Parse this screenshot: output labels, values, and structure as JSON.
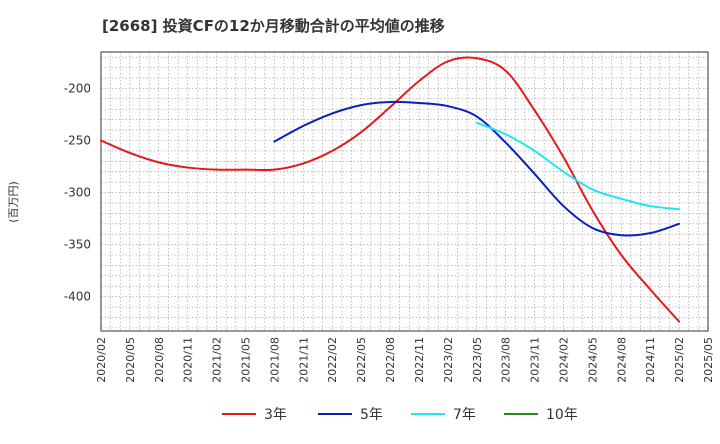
{
  "chart_data": {
    "type": "line",
    "title": "[2668]  投資CFの12か月移動合計の平均値の推移",
    "ylabel": "(百万円)",
    "xlabel": "",
    "x_ticks": [
      "2020/02",
      "2020/05",
      "2020/08",
      "2020/11",
      "2021/02",
      "2021/05",
      "2021/08",
      "2021/11",
      "2022/02",
      "2022/05",
      "2022/08",
      "2022/11",
      "2023/02",
      "2023/05",
      "2023/08",
      "2023/11",
      "2024/02",
      "2024/05",
      "2024/08",
      "2024/11",
      "2025/02",
      "2025/05"
    ],
    "y_ticks": [
      -200,
      -250,
      -300,
      -350,
      -400
    ],
    "ylim": [
      -433,
      -165
    ],
    "grid": true,
    "legend_position": "bottom",
    "series": [
      {
        "name": "3年",
        "color": "#e31a1c",
        "points": [
          [
            "2020/02",
            -250
          ],
          [
            "2020/05",
            -262
          ],
          [
            "2020/08",
            -271
          ],
          [
            "2020/11",
            -276
          ],
          [
            "2021/02",
            -278
          ],
          [
            "2021/05",
            -278
          ],
          [
            "2021/08",
            -278
          ],
          [
            "2021/11",
            -272
          ],
          [
            "2022/02",
            -260
          ],
          [
            "2022/05",
            -242
          ],
          [
            "2022/08",
            -218
          ],
          [
            "2022/11",
            -193
          ],
          [
            "2023/02",
            -174
          ],
          [
            "2023/05",
            -171
          ],
          [
            "2023/08",
            -183
          ],
          [
            "2023/11",
            -221
          ],
          [
            "2024/02",
            -266
          ],
          [
            "2024/05",
            -317
          ],
          [
            "2024/08",
            -360
          ],
          [
            "2024/11",
            -393
          ],
          [
            "2025/02",
            -424
          ]
        ]
      },
      {
        "name": "5年",
        "color": "#0b1fbf",
        "points": [
          [
            "2021/08",
            -251
          ],
          [
            "2021/11",
            -236
          ],
          [
            "2022/02",
            -224
          ],
          [
            "2022/05",
            -216
          ],
          [
            "2022/08",
            -213
          ],
          [
            "2022/11",
            -214
          ],
          [
            "2023/02",
            -217
          ],
          [
            "2023/05",
            -227
          ],
          [
            "2023/08",
            -252
          ],
          [
            "2023/11",
            -282
          ],
          [
            "2024/02",
            -313
          ],
          [
            "2024/05",
            -334
          ],
          [
            "2024/08",
            -341
          ],
          [
            "2024/11",
            -339
          ],
          [
            "2025/02",
            -330
          ]
        ]
      },
      {
        "name": "7年",
        "color": "#1fe6f0",
        "points": [
          [
            "2023/05",
            -233
          ],
          [
            "2023/08",
            -244
          ],
          [
            "2023/11",
            -260
          ],
          [
            "2024/02",
            -280
          ],
          [
            "2024/05",
            -297
          ],
          [
            "2024/08",
            -306
          ],
          [
            "2024/11",
            -313
          ],
          [
            "2025/02",
            -316
          ]
        ]
      },
      {
        "name": "10年",
        "color": "#2a8a1f",
        "points": []
      }
    ]
  }
}
